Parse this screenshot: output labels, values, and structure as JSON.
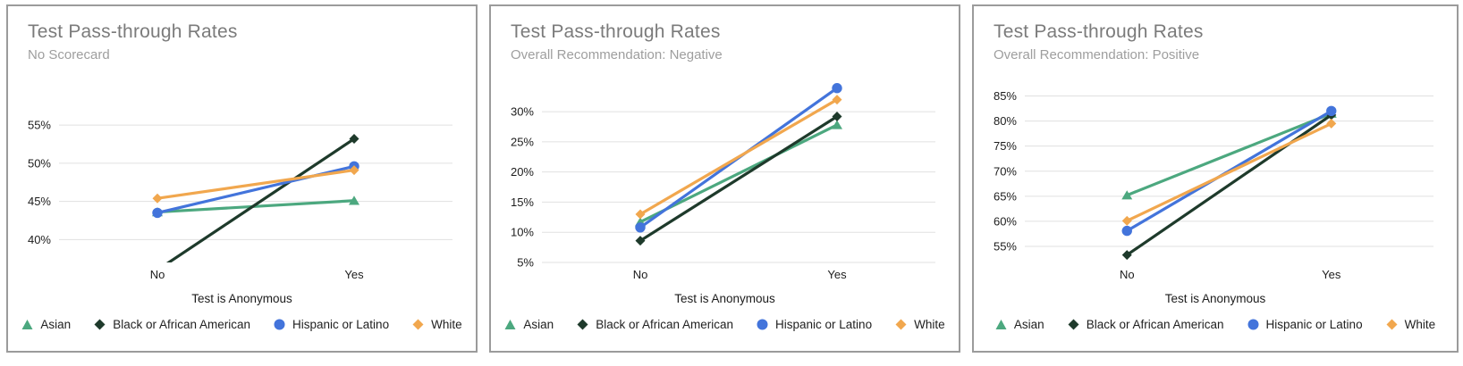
{
  "chart_data": [
    {
      "type": "line",
      "title": "Test Pass-through Rates",
      "subtitle": "No Scorecard",
      "x_label": "Test is Anonymous",
      "categories": [
        "No",
        "Yes"
      ],
      "y_tick_labels": [
        "40%",
        "45%",
        "50%",
        "55%"
      ],
      "ylim": [
        37,
        60.4
      ],
      "grid": true,
      "legend_position": "bottom",
      "series": [
        {
          "name": "Asian",
          "marker": "triangle",
          "color": "#4ca87f",
          "values": [
            43.6,
            45.1
          ]
        },
        {
          "name": "Black or African American",
          "marker": "diamond",
          "color": "#1e3a2b",
          "values": [
            36.0,
            53.2
          ]
        },
        {
          "name": "Hispanic or Latino",
          "marker": "circle",
          "color": "#4374db",
          "values": [
            43.5,
            49.6
          ]
        },
        {
          "name": "White",
          "marker": "diamond",
          "color": "#f1a74e",
          "values": [
            45.4,
            49.1
          ]
        }
      ]
    },
    {
      "type": "line",
      "title": "Test Pass-through Rates",
      "subtitle": "Overall Recommendation: Negative",
      "x_label": "Test is Anonymous",
      "categories": [
        "No",
        "Yes"
      ],
      "y_tick_labels": [
        "5%",
        "10%",
        "15%",
        "20%",
        "25%",
        "30%"
      ],
      "ylim": [
        5,
        34.6
      ],
      "grid": true,
      "legend_position": "bottom",
      "series": [
        {
          "name": "Asian",
          "marker": "triangle",
          "color": "#4ca87f",
          "values": [
            11.7,
            27.8
          ]
        },
        {
          "name": "Black or African American",
          "marker": "diamond",
          "color": "#1e3a2b",
          "values": [
            8.6,
            29.2
          ]
        },
        {
          "name": "Hispanic or Latino",
          "marker": "circle",
          "color": "#4374db",
          "values": [
            10.8,
            33.9
          ]
        },
        {
          "name": "White",
          "marker": "diamond",
          "color": "#f1a74e",
          "values": [
            13.0,
            32.0
          ]
        }
      ]
    },
    {
      "type": "line",
      "title": "Test Pass-through Rates",
      "subtitle": "Overall Recommendation: Positive",
      "x_label": "Test is Anonymous",
      "categories": [
        "No",
        "Yes"
      ],
      "y_tick_labels": [
        "55%",
        "60%",
        "65%",
        "70%",
        "75%",
        "80%",
        "85%"
      ],
      "ylim": [
        51.8,
        87.4
      ],
      "grid": true,
      "legend_position": "bottom",
      "series": [
        {
          "name": "Asian",
          "marker": "triangle",
          "color": "#4ca87f",
          "values": [
            65.2,
            81.5
          ]
        },
        {
          "name": "Black or African American",
          "marker": "diamond",
          "color": "#1e3a2b",
          "values": [
            53.3,
            81.2
          ]
        },
        {
          "name": "Hispanic or Latino",
          "marker": "circle",
          "color": "#4374db",
          "values": [
            58.1,
            82.0
          ]
        },
        {
          "name": "White",
          "marker": "diamond",
          "color": "#f1a74e",
          "values": [
            60.1,
            79.5
          ]
        }
      ]
    }
  ],
  "style": {
    "gridline_color": "#e0e0e0",
    "tick_label_color": "#1c1c1c",
    "title_color": "#7b7b7b",
    "subtitle_color": "#9e9e9e",
    "panel_border_color": "#9b9b9b"
  }
}
